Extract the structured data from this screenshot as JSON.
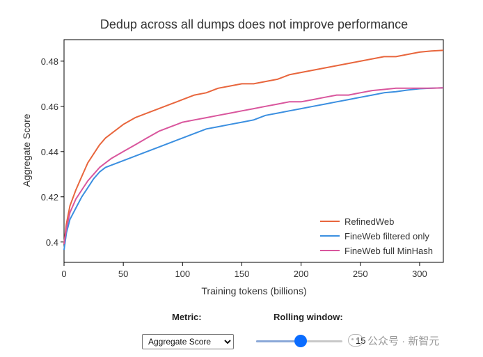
{
  "chart_data": {
    "type": "line",
    "title": "Dedup across all dumps does not improve performance",
    "xlabel": "Training tokens (billions)",
    "ylabel": "Aggregate Score",
    "xlim": [
      0,
      320
    ],
    "ylim": [
      0.391,
      0.4895
    ],
    "xticks": [
      0,
      50,
      100,
      150,
      200,
      250,
      300
    ],
    "yticks": [
      0.4,
      0.42,
      0.44,
      0.46,
      0.48
    ],
    "ytick_labels": [
      "0.4",
      "0.42",
      "0.44",
      "0.46",
      "0.48"
    ],
    "grid": false,
    "legend_position": "bottom-right",
    "x": [
      0,
      2,
      5,
      10,
      15,
      20,
      25,
      30,
      35,
      40,
      50,
      60,
      70,
      80,
      90,
      100,
      110,
      120,
      130,
      140,
      150,
      160,
      170,
      180,
      190,
      200,
      210,
      220,
      230,
      240,
      250,
      260,
      270,
      280,
      290,
      300,
      310,
      320
    ],
    "series": [
      {
        "name": "RefinedWeb",
        "color": "#e8663d",
        "values": [
          0.399,
          0.408,
          0.416,
          0.423,
          0.429,
          0.435,
          0.439,
          0.443,
          0.446,
          0.448,
          0.452,
          0.455,
          0.457,
          0.459,
          0.461,
          0.463,
          0.465,
          0.466,
          0.468,
          0.469,
          0.47,
          0.47,
          0.471,
          0.472,
          0.474,
          0.475,
          0.476,
          0.477,
          0.478,
          0.479,
          0.48,
          0.481,
          0.482,
          0.482,
          0.483,
          0.484,
          0.4845,
          0.4848
        ]
      },
      {
        "name": "FineWeb filtered only",
        "color": "#3b8fe0",
        "values": [
          0.3965,
          0.404,
          0.41,
          0.415,
          0.42,
          0.424,
          0.428,
          0.431,
          0.433,
          0.434,
          0.436,
          0.438,
          0.44,
          0.442,
          0.444,
          0.446,
          0.448,
          0.45,
          0.451,
          0.452,
          0.453,
          0.454,
          0.456,
          0.457,
          0.458,
          0.459,
          0.46,
          0.461,
          0.462,
          0.463,
          0.464,
          0.465,
          0.466,
          0.4665,
          0.4672,
          0.4678,
          0.468,
          0.4682
        ]
      },
      {
        "name": "FineWeb full MinHash",
        "color": "#d9569d",
        "values": [
          0.399,
          0.406,
          0.413,
          0.419,
          0.423,
          0.427,
          0.43,
          0.433,
          0.435,
          0.437,
          0.44,
          0.443,
          0.446,
          0.449,
          0.451,
          0.453,
          0.454,
          0.455,
          0.456,
          0.457,
          0.458,
          0.459,
          0.46,
          0.461,
          0.462,
          0.462,
          0.463,
          0.464,
          0.465,
          0.465,
          0.466,
          0.467,
          0.4675,
          0.468,
          0.468,
          0.468,
          0.468,
          0.4682
        ]
      }
    ]
  },
  "controls": {
    "metric_label": "Metric:",
    "metric_selected": "Aggregate Score",
    "window_label": "Rolling window:",
    "window_value": "15",
    "window_fraction": 0.52
  },
  "watermark": {
    "text": "公众号 · 新智元",
    "icon": "wechat-icon"
  }
}
